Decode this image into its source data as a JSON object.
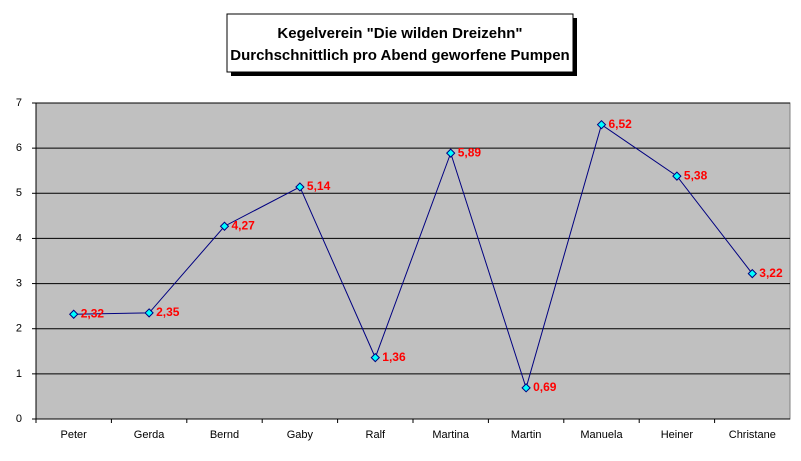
{
  "chart_data": {
    "type": "line",
    "title": "Kegelverein \"Die wilden Dreizehn\"",
    "subtitle": "Durchschnittlich pro Abend geworfene Pumpen",
    "categories": [
      "Peter",
      "Gerda",
      "Bernd",
      "Gaby",
      "Ralf",
      "Martina",
      "Martin",
      "Manuela",
      "Heiner",
      "Christane"
    ],
    "values": [
      2.32,
      2.35,
      4.27,
      5.14,
      1.36,
      5.89,
      0.69,
      6.52,
      5.38,
      3.22
    ],
    "value_labels": [
      "2,32",
      "2,35",
      "4,27",
      "5,14",
      "1,36",
      "5,89",
      "0,69",
      "6,52",
      "5,38",
      "3,22"
    ],
    "color": "#000080",
    "marker_color": "#00ffff",
    "label_color": "#ff0000",
    "ylim": [
      0,
      7
    ],
    "yticks": [
      0,
      1,
      2,
      3,
      4,
      5,
      6,
      7
    ],
    "grid": true
  }
}
